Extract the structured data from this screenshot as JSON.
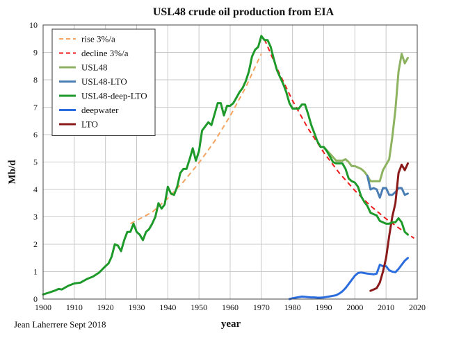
{
  "chart_data": {
    "type": "line",
    "title": "USL48 crude oil production from EIA",
    "xlabel": "year",
    "ylabel": "Mb/d",
    "xlim": [
      1900,
      2020
    ],
    "ylim": [
      0,
      10
    ],
    "x_ticks": [
      "1900",
      "1910",
      "1920",
      "1930",
      "1940",
      "1950",
      "1960",
      "1970",
      "1980",
      "1990",
      "2000",
      "2010",
      "2020"
    ],
    "y_ticks": [
      "0",
      "1",
      "2",
      "3",
      "4",
      "5",
      "6",
      "7",
      "8",
      "9",
      "10"
    ],
    "grid": true,
    "legend_position": "top-left",
    "credit": "Jean Laherrere Sept 2018",
    "series": [
      {
        "name": "rise  3%/a",
        "color": "#f4a460",
        "dashed": true,
        "x": [
          1928,
          1935,
          1940,
          1945,
          1950,
          1955,
          1960,
          1965,
          1970
        ],
        "y": [
          2.75,
          3.17,
          3.68,
          4.28,
          4.97,
          5.76,
          6.68,
          7.73,
          8.95
        ]
      },
      {
        "name": "decline 3%/a",
        "color": "#ee1c1c",
        "dashed": true,
        "x": [
          1971,
          1975,
          1980,
          1985,
          1990,
          1995,
          2000,
          2005,
          2010,
          2015,
          2019
        ],
        "y": [
          9.48,
          8.42,
          7.24,
          6.22,
          5.35,
          4.6,
          3.96,
          3.4,
          2.93,
          2.52,
          2.22
        ]
      },
      {
        "name": "USL48",
        "color": "#8db360",
        "dashed": false,
        "x": [
          1990,
          1992,
          1994,
          1996,
          1997,
          1998,
          1999,
          2000,
          2002,
          2003,
          2004,
          2005,
          2006,
          2007,
          2008,
          2009,
          2010,
          2011,
          2012,
          2013,
          2014,
          2015,
          2016,
          2017
        ],
        "y": [
          5.55,
          5.3,
          5.05,
          5.05,
          5.1,
          5.0,
          4.85,
          4.85,
          4.75,
          4.65,
          4.5,
          4.3,
          4.3,
          4.3,
          4.3,
          4.7,
          4.9,
          5.1,
          5.9,
          6.9,
          8.3,
          8.95,
          8.6,
          8.8
        ]
      },
      {
        "name": "USL48-LTO",
        "color": "#4a7eb5",
        "dashed": false,
        "x": [
          2004,
          2005,
          2006,
          2007,
          2008,
          2009,
          2010,
          2011,
          2012,
          2013,
          2014,
          2015,
          2016,
          2017
        ],
        "y": [
          4.5,
          4.0,
          4.05,
          4.0,
          3.7,
          4.05,
          4.05,
          3.8,
          3.8,
          3.9,
          4.05,
          4.05,
          3.8,
          3.85
        ]
      },
      {
        "name": "USL48-deep-LTO",
        "color": "#1e9a2a",
        "dashed": false,
        "x": [
          1900,
          1902,
          1904,
          1905,
          1906,
          1908,
          1910,
          1912,
          1914,
          1916,
          1918,
          1920,
          1921,
          1922,
          1923,
          1924,
          1925,
          1926,
          1927,
          1928,
          1929,
          1930,
          1931,
          1932,
          1933,
          1934,
          1935,
          1936,
          1937,
          1938,
          1939,
          1940,
          1941,
          1942,
          1943,
          1944,
          1945,
          1946,
          1947,
          1948,
          1949,
          1950,
          1951,
          1952,
          1953,
          1954,
          1955,
          1956,
          1957,
          1958,
          1959,
          1960,
          1961,
          1962,
          1963,
          1964,
          1965,
          1966,
          1967,
          1968,
          1969,
          1970,
          1971,
          1972,
          1973,
          1974,
          1975,
          1976,
          1977,
          1978,
          1979,
          1980,
          1981,
          1982,
          1983,
          1984,
          1985,
          1986,
          1987,
          1988,
          1989,
          1990,
          1991,
          1992,
          1993,
          1994,
          1995,
          1996,
          1997,
          1998,
          1999,
          2000,
          2001,
          2002,
          2003,
          2004,
          2005,
          2006,
          2007,
          2008,
          2009,
          2010,
          2011,
          2012,
          2013,
          2014,
          2015,
          2016,
          2017
        ],
        "y": [
          0.17,
          0.24,
          0.32,
          0.37,
          0.35,
          0.48,
          0.57,
          0.6,
          0.73,
          0.82,
          0.97,
          1.2,
          1.3,
          1.55,
          2.0,
          1.95,
          1.75,
          2.15,
          2.45,
          2.45,
          2.75,
          2.45,
          2.35,
          2.15,
          2.45,
          2.55,
          2.75,
          3.0,
          3.5,
          3.3,
          3.45,
          4.1,
          3.85,
          3.8,
          4.1,
          4.6,
          4.75,
          4.75,
          5.1,
          5.5,
          5.05,
          5.4,
          6.15,
          6.3,
          6.45,
          6.35,
          6.75,
          7.15,
          7.15,
          6.7,
          7.05,
          7.05,
          7.15,
          7.35,
          7.55,
          7.7,
          7.95,
          8.3,
          8.85,
          9.1,
          9.2,
          9.6,
          9.45,
          9.45,
          9.2,
          8.75,
          8.35,
          8.1,
          7.85,
          7.55,
          7.15,
          6.95,
          6.95,
          6.95,
          7.1,
          7.1,
          6.75,
          6.35,
          6.05,
          5.75,
          5.55,
          5.55,
          5.4,
          5.2,
          5.0,
          4.95,
          4.95,
          4.95,
          4.75,
          4.4,
          4.3,
          4.25,
          4.1,
          3.75,
          3.55,
          3.4,
          3.15,
          3.1,
          3.05,
          2.85,
          2.8,
          2.75,
          2.75,
          2.8,
          2.8,
          2.95,
          2.8,
          2.45,
          2.35
        ]
      },
      {
        "name": "deepwater",
        "color": "#2b6cde",
        "dashed": false,
        "x": [
          1979,
          1980,
          1981,
          1982,
          1983,
          1984,
          1985,
          1986,
          1987,
          1988,
          1989,
          1990,
          1991,
          1992,
          1993,
          1994,
          1995,
          1996,
          1997,
          1998,
          1999,
          2000,
          2001,
          2002,
          2003,
          2004,
          2005,
          2006,
          2007,
          2008,
          2009,
          2010,
          2011,
          2012,
          2013,
          2014,
          2015,
          2016,
          2017
        ],
        "y": [
          0.0,
          0.03,
          0.05,
          0.07,
          0.09,
          0.08,
          0.07,
          0.06,
          0.06,
          0.05,
          0.05,
          0.06,
          0.08,
          0.1,
          0.12,
          0.14,
          0.2,
          0.28,
          0.4,
          0.55,
          0.7,
          0.85,
          0.95,
          0.97,
          0.95,
          0.93,
          0.92,
          0.9,
          0.93,
          1.25,
          1.2,
          1.2,
          1.05,
          1.0,
          0.98,
          1.1,
          1.25,
          1.4,
          1.5
        ]
      },
      {
        "name": "LTO",
        "color": "#8b1a1a",
        "dashed": false,
        "x": [
          2005,
          2006,
          2007,
          2008,
          2009,
          2010,
          2011,
          2012,
          2013,
          2014,
          2015,
          2016,
          2017
        ],
        "y": [
          0.3,
          0.35,
          0.4,
          0.6,
          1.0,
          1.5,
          2.3,
          3.0,
          3.5,
          4.6,
          4.9,
          4.7,
          4.95
        ]
      }
    ]
  }
}
